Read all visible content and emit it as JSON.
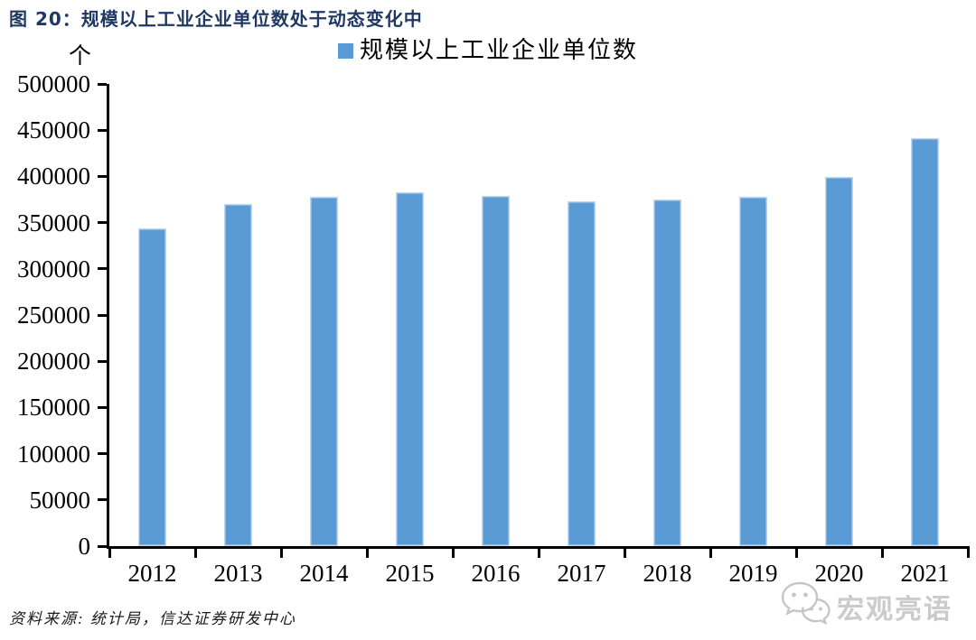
{
  "figure": {
    "title": "图 20：规模以上工业企业单位数处于动态变化中",
    "unit_label": "个",
    "legend_label": "规模以上工业企业单位数",
    "source": "资料来源: 统计局，信达证券研发中心",
    "watermark": "宏观亮语"
  },
  "colors": {
    "bar": "#5B9BD5",
    "bar_edge": "#BDD7EE",
    "title": "#1F3864",
    "axis": "#000000",
    "watermark": "#CBCBCB"
  },
  "chart_data": {
    "type": "bar",
    "title": "规模以上工业企业单位数",
    "categories": [
      "2012",
      "2013",
      "2014",
      "2015",
      "2016",
      "2017",
      "2018",
      "2019",
      "2020",
      "2021"
    ],
    "values": [
      344000,
      370000,
      378000,
      383000,
      379000,
      373000,
      375000,
      378000,
      399000,
      441000
    ],
    "xlabel": "",
    "ylabel": "个",
    "ylim": [
      0,
      500000
    ],
    "ytick_step": 50000,
    "yticks": [
      0,
      50000,
      100000,
      150000,
      200000,
      250000,
      300000,
      350000,
      400000,
      450000,
      500000
    ],
    "grid": false,
    "legend_position": "top-center",
    "legend_entries": [
      "规模以上工业企业单位数"
    ]
  }
}
